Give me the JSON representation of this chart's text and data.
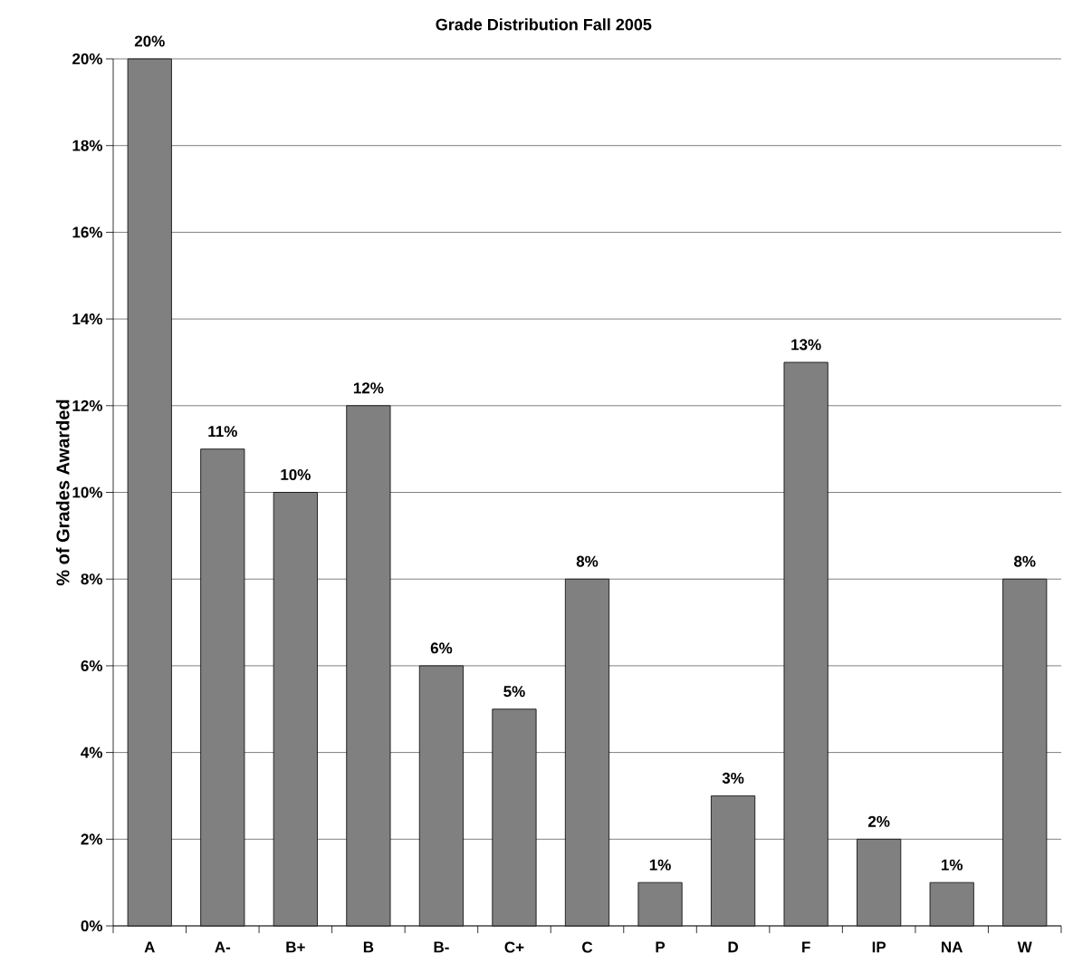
{
  "chart_data": {
    "type": "bar",
    "title": "Grade Distribution Fall 2005",
    "ylabel": "% of Grades Awarded",
    "categories": [
      "A",
      "A-",
      "B+",
      "B",
      "B-",
      "C+",
      "C",
      "P",
      "D",
      "F",
      "IP",
      "NA",
      "W"
    ],
    "values": [
      20,
      11,
      10,
      12,
      6,
      5,
      8,
      1,
      3,
      13,
      2,
      1,
      8
    ],
    "value_labels": [
      "20%",
      "11%",
      "10%",
      "12%",
      "6%",
      "5%",
      "8%",
      "1%",
      "3%",
      "13%",
      "2%",
      "1%",
      "8%"
    ],
    "color": "#808080",
    "ylim": [
      0,
      20
    ],
    "yticks": [
      {
        "value": 0,
        "label": "0%"
      },
      {
        "value": 2,
        "label": "2%"
      },
      {
        "value": 4,
        "label": "4%"
      },
      {
        "value": 6,
        "label": "6%"
      },
      {
        "value": 8,
        "label": "8%"
      },
      {
        "value": 10,
        "label": "10%"
      },
      {
        "value": 12,
        "label": "12%"
      },
      {
        "value": 14,
        "label": "14%"
      },
      {
        "value": 16,
        "label": "16%"
      },
      {
        "value": 18,
        "label": "18%"
      },
      {
        "value": 20,
        "label": "20%"
      }
    ],
    "grid": "y"
  }
}
